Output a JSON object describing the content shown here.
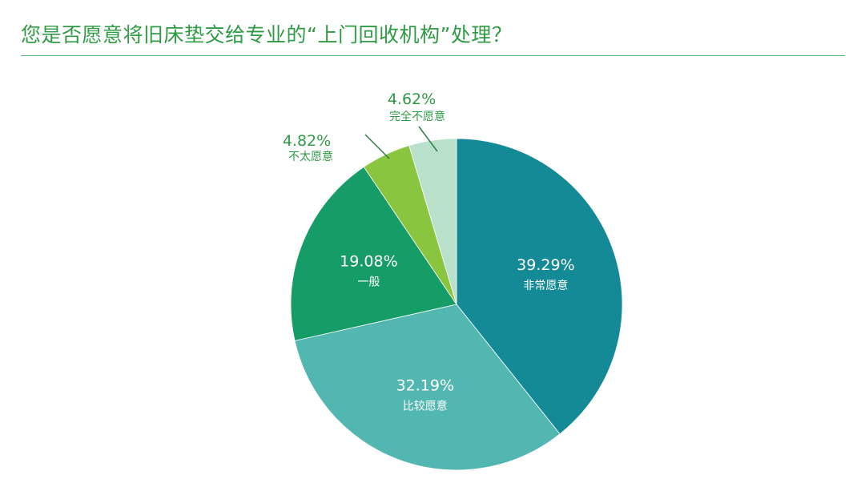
{
  "title": "您是否愿意将旧床垫交给专业的“上门回收机构”处理？",
  "colors": {
    "title": "#2f9b45",
    "rule": "#5bb57b",
    "outside_label": "#2f9b45",
    "inside_label": "#ffffff",
    "leader_line": "#2e7d4a"
  },
  "chart_data": {
    "type": "pie",
    "start": "12 o'clock",
    "direction": "clockwise",
    "slices": [
      {
        "label": "非常愿意",
        "value": 39.29,
        "display": "39.29%",
        "color": "#138a96",
        "label_placement": "inside"
      },
      {
        "label": "比较愿意",
        "value": 32.19,
        "display": "32.19%",
        "color": "#52b7b1",
        "label_placement": "inside"
      },
      {
        "label": "一般",
        "value": 19.08,
        "display": "19.08%",
        "color": "#159c67",
        "label_placement": "inside"
      },
      {
        "label": "不太愿意",
        "value": 4.82,
        "display": "4.82%",
        "color": "#8ac53f",
        "label_placement": "outside"
      },
      {
        "label": "完全不愿意",
        "value": 4.62,
        "display": "4.62%",
        "color": "#b9e0cb",
        "label_placement": "outside"
      }
    ]
  }
}
